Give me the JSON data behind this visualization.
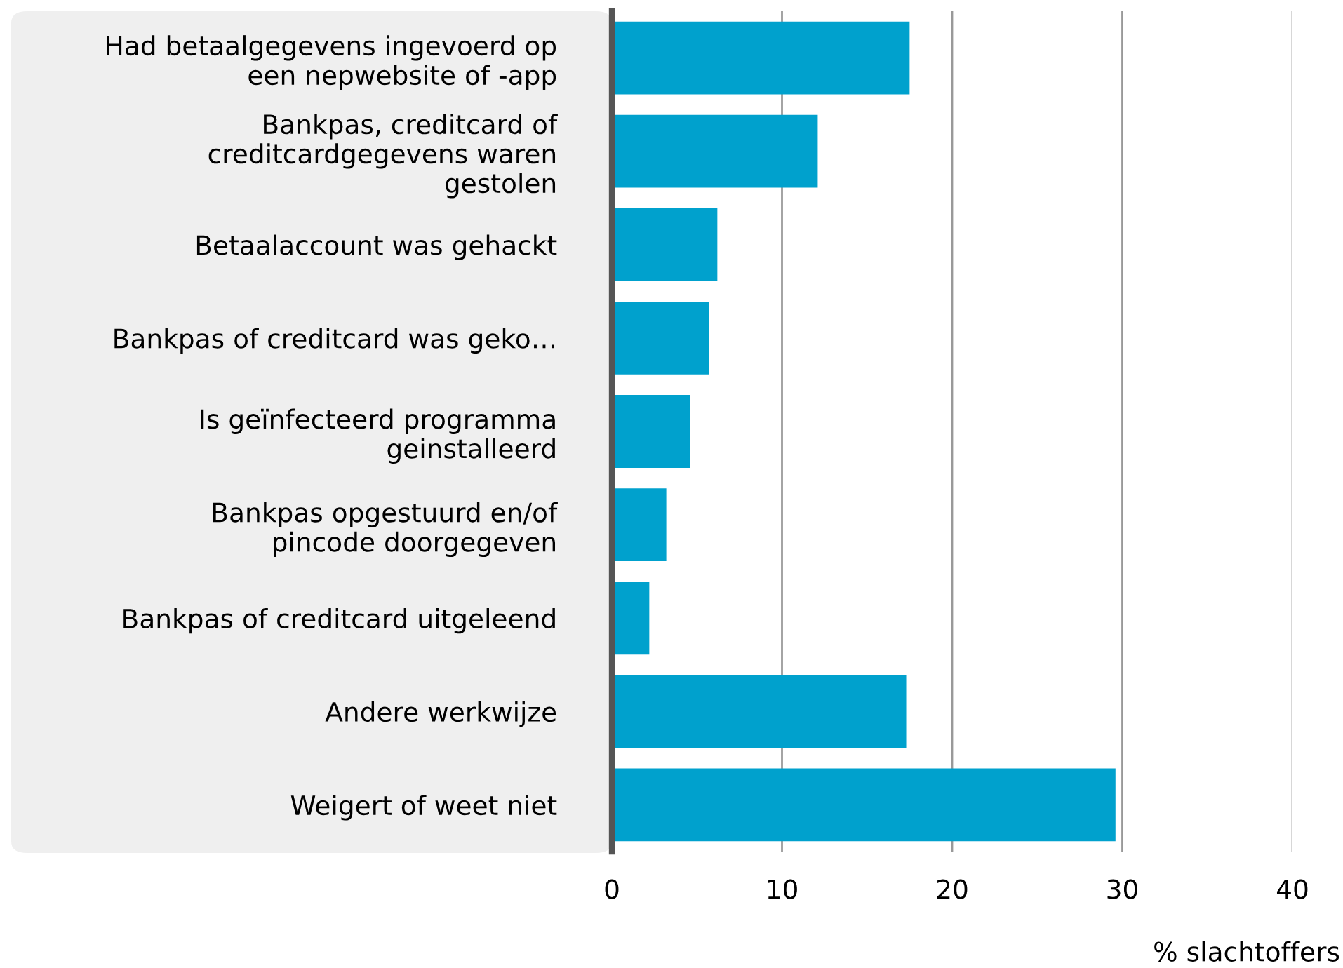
{
  "chart_data": {
    "type": "bar",
    "orientation": "horizontal",
    "xlabel": "% slachtoffers",
    "categories": [
      "Had betaalgegevens ingevoerd op\neen nepwebsite of -app",
      "Bankpas, creditcard of\ncreditcardgegevens waren\ngestolen",
      "Betaalaccount was gehackt",
      "Bankpas of creditcard was geko…",
      "Is geïnfecteerd programma\ngeinstalleerd",
      "Bankpas opgestuurd en/of\npincode doorgegeven",
      "Bankpas of creditcard uitgeleend",
      "Andere werkwijze",
      "Weigert of weet niet"
    ],
    "values": [
      17.5,
      12.1,
      6.2,
      5.7,
      4.6,
      3.2,
      2.2,
      17.3,
      29.6
    ],
    "color": "#00a1cd",
    "xlim": [
      0,
      40
    ],
    "xticks": [
      0,
      10,
      20,
      30,
      40
    ],
    "grid": "x"
  }
}
